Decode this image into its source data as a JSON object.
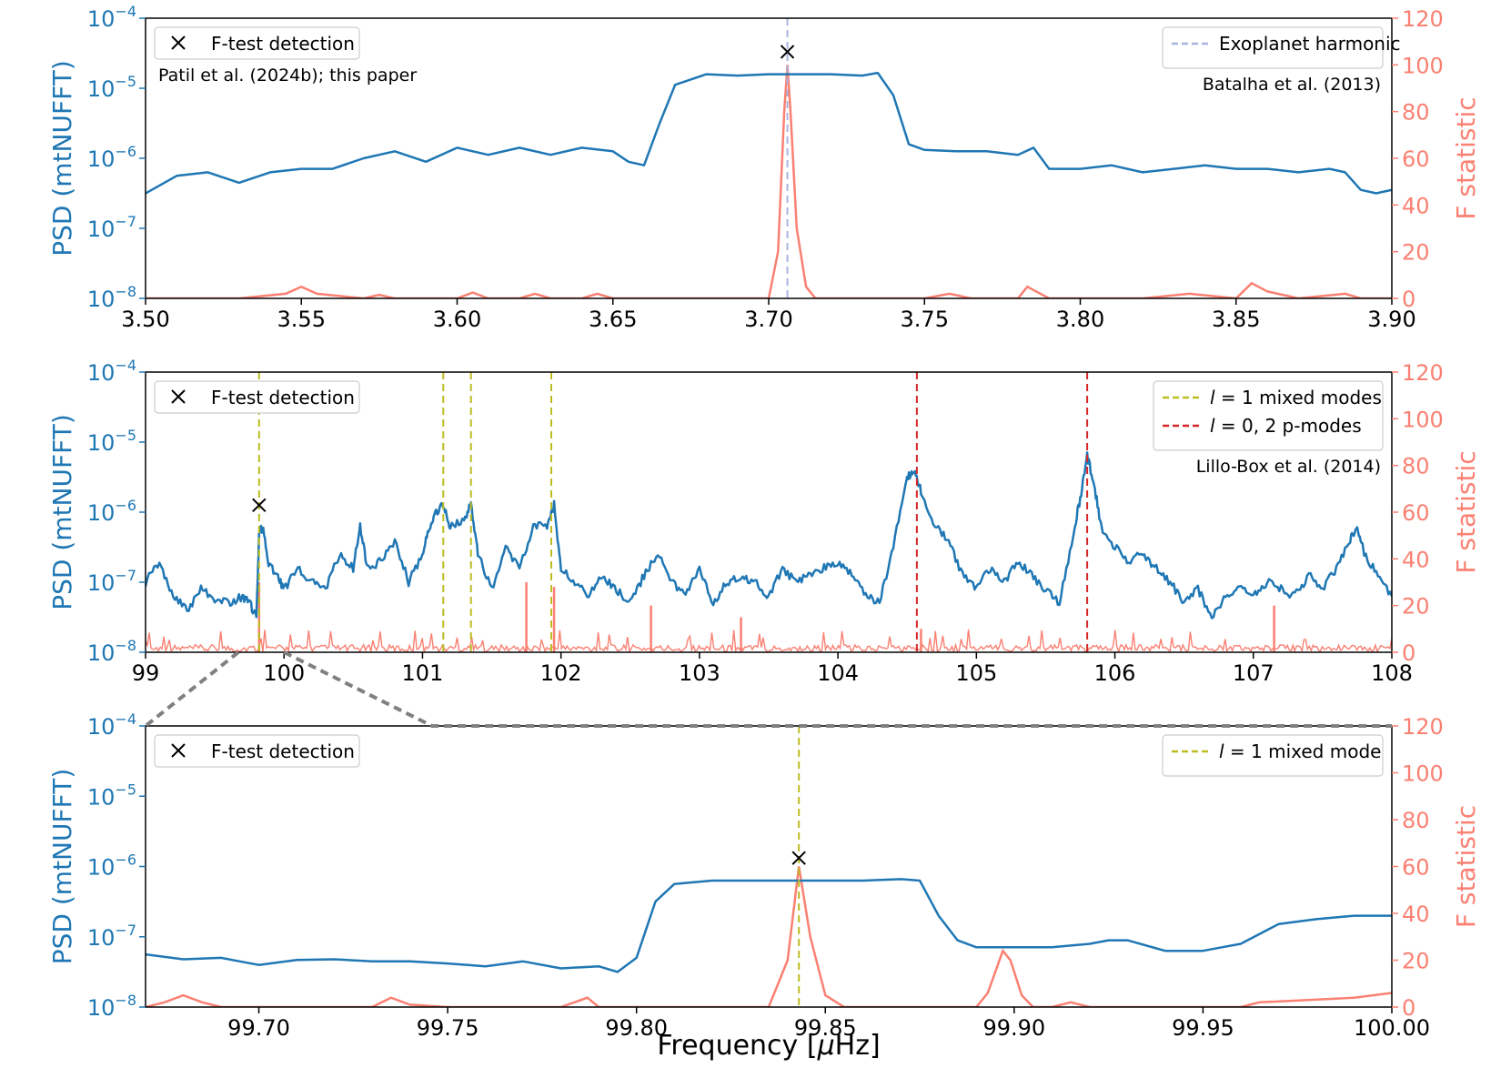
{
  "figure": {
    "xlabel_prefix": "Frequency [",
    "xlabel_mu": "μ",
    "xlabel_suffix": "Hz]",
    "colors": {
      "psd": "#1f77b4",
      "fstat": "#fa8072",
      "harmonic": "#aab4e0",
      "l1": "#bcbd22",
      "p": "#d62728",
      "zoom": "#808080"
    }
  },
  "chart_data": [
    {
      "type": "line",
      "name": "top",
      "xlim": [
        3.5,
        3.9
      ],
      "xticks": [
        "3.50",
        "3.55",
        "3.60",
        "3.65",
        "3.70",
        "3.75",
        "3.80",
        "3.85",
        "3.90"
      ],
      "ylabel_left": "PSD (mtNUFFT)",
      "ylabel_right": "F statistic",
      "yticks_left": [
        "10^-8",
        "10^-7",
        "10^-6",
        "10^-5",
        "10^-4"
      ],
      "yticks_right": [
        "0",
        "20",
        "40",
        "60",
        "80",
        "100",
        "120"
      ],
      "psd_x": [
        3.5,
        3.51,
        3.52,
        3.53,
        3.54,
        3.55,
        3.56,
        3.57,
        3.58,
        3.59,
        3.6,
        3.61,
        3.62,
        3.63,
        3.64,
        3.65,
        3.655,
        3.66,
        3.665,
        3.67,
        3.68,
        3.69,
        3.7,
        3.71,
        3.72,
        3.73,
        3.735,
        3.74,
        3.745,
        3.75,
        3.76,
        3.77,
        3.78,
        3.785,
        3.79,
        3.8,
        3.81,
        3.82,
        3.83,
        3.84,
        3.85,
        3.86,
        3.87,
        3.88,
        3.885,
        3.89,
        3.895,
        3.9
      ],
      "psd_log": [
        -6.5,
        -6.25,
        -6.2,
        -6.35,
        -6.2,
        -6.15,
        -6.15,
        -6.0,
        -5.9,
        -6.05,
        -5.85,
        -5.95,
        -5.85,
        -5.95,
        -5.85,
        -5.9,
        -6.05,
        -6.1,
        -5.5,
        -4.95,
        -4.8,
        -4.82,
        -4.8,
        -4.8,
        -4.8,
        -4.82,
        -4.78,
        -5.1,
        -5.8,
        -5.88,
        -5.9,
        -5.9,
        -5.95,
        -5.85,
        -6.15,
        -6.15,
        -6.1,
        -6.2,
        -6.15,
        -6.1,
        -6.15,
        -6.15,
        -6.2,
        -6.15,
        -6.2,
        -6.45,
        -6.5,
        -6.45
      ],
      "fstat_x": [
        3.5,
        3.53,
        3.545,
        3.55,
        3.555,
        3.57,
        3.575,
        3.58,
        3.6,
        3.605,
        3.61,
        3.62,
        3.625,
        3.63,
        3.64,
        3.645,
        3.65,
        3.7,
        3.703,
        3.705,
        3.706,
        3.707,
        3.709,
        3.712,
        3.715,
        3.75,
        3.758,
        3.765,
        3.78,
        3.783,
        3.79,
        3.82,
        3.835,
        3.85,
        3.855,
        3.86,
        3.87,
        3.885,
        3.89,
        3.9
      ],
      "fstat_y": [
        0,
        0,
        2,
        5,
        2,
        0,
        1.5,
        0,
        0,
        2.5,
        0,
        0,
        2,
        0,
        0,
        2,
        0,
        0,
        20,
        80,
        100,
        80,
        30,
        5,
        0,
        0,
        2,
        0,
        0,
        5,
        0,
        0,
        2,
        0,
        6.5,
        3,
        0,
        2,
        0,
        0
      ],
      "markers": [
        {
          "x": 3.706,
          "log": -4.48
        }
      ],
      "vlines": [
        {
          "x": 3.706,
          "style": "harmonic"
        }
      ],
      "legend_left": {
        "marker_label": "F-test detection",
        "citation": "Patil et al. (2024b); this paper"
      },
      "legend_right": {
        "items": [
          "Exoplanet harmonic"
        ],
        "citation": "Batalha et al. (2013)"
      }
    },
    {
      "type": "line",
      "name": "middle",
      "xlim": [
        99,
        108
      ],
      "xticks": [
        "99",
        "100",
        "101",
        "102",
        "103",
        "104",
        "105",
        "106",
        "107",
        "108"
      ],
      "ylabel_left": "PSD (mtNUFFT)",
      "ylabel_right": "F statistic",
      "yticks_left": [
        "10^-8",
        "10^-7",
        "10^-6",
        "10^-5",
        "10^-4"
      ],
      "yticks_right": [
        "0",
        "20",
        "40",
        "60",
        "80",
        "100",
        "120"
      ],
      "psd_x": [
        99.0,
        99.1,
        99.2,
        99.3,
        99.4,
        99.5,
        99.6,
        99.7,
        99.75,
        99.8,
        99.82,
        99.85,
        99.88,
        99.95,
        100.0,
        100.1,
        100.2,
        100.3,
        100.4,
        100.5,
        100.55,
        100.6,
        100.7,
        100.8,
        100.9,
        101.0,
        101.05,
        101.1,
        101.15,
        101.2,
        101.3,
        101.35,
        101.4,
        101.5,
        101.6,
        101.7,
        101.8,
        101.9,
        101.95,
        102.0,
        102.1,
        102.2,
        102.3,
        102.4,
        102.5,
        102.6,
        102.7,
        102.8,
        102.9,
        103.0,
        103.1,
        103.2,
        103.3,
        103.4,
        103.5,
        103.6,
        103.7,
        103.8,
        103.9,
        104.0,
        104.1,
        104.2,
        104.3,
        104.4,
        104.5,
        104.55,
        104.6,
        104.7,
        104.8,
        104.9,
        105.0,
        105.1,
        105.2,
        105.3,
        105.4,
        105.5,
        105.6,
        105.7,
        105.75,
        105.8,
        105.85,
        105.9,
        106.0,
        106.1,
        106.2,
        106.3,
        106.4,
        106.5,
        106.6,
        106.7,
        106.8,
        106.9,
        107.0,
        107.1,
        107.2,
        107.3,
        107.4,
        107.5,
        107.6,
        107.7,
        107.75,
        107.8,
        107.9,
        108.0
      ],
      "psd_log": [
        -7.0,
        -6.7,
        -7.2,
        -7.4,
        -7.1,
        -7.25,
        -7.3,
        -7.2,
        -7.3,
        -7.5,
        -6.3,
        -6.2,
        -6.7,
        -6.9,
        -7.1,
        -6.8,
        -7.0,
        -7.1,
        -6.6,
        -6.8,
        -6.2,
        -6.8,
        -6.7,
        -6.4,
        -7.0,
        -6.6,
        -6.2,
        -6.0,
        -5.9,
        -6.2,
        -6.1,
        -5.9,
        -6.6,
        -7.1,
        -6.5,
        -6.8,
        -6.2,
        -6.2,
        -5.9,
        -6.8,
        -7.0,
        -7.2,
        -6.9,
        -7.1,
        -7.3,
        -6.9,
        -6.6,
        -7.0,
        -7.2,
        -6.8,
        -7.3,
        -7.0,
        -6.9,
        -7.0,
        -7.2,
        -6.8,
        -7.0,
        -6.9,
        -6.8,
        -6.7,
        -6.9,
        -7.2,
        -7.3,
        -6.5,
        -5.5,
        -5.4,
        -5.7,
        -6.2,
        -6.4,
        -6.9,
        -7.1,
        -6.8,
        -7.0,
        -6.7,
        -6.9,
        -7.1,
        -7.3,
        -6.3,
        -5.8,
        -5.2,
        -5.6,
        -6.2,
        -6.5,
        -6.7,
        -6.6,
        -6.8,
        -7.0,
        -7.3,
        -7.1,
        -7.5,
        -7.2,
        -7.1,
        -7.2,
        -7.0,
        -7.1,
        -7.2,
        -6.9,
        -7.1,
        -6.8,
        -6.4,
        -6.2,
        -6.6,
        -6.9,
        -7.2
      ],
      "fstat_spikes": [
        {
          "x": 99.82,
          "y": 30
        },
        {
          "x": 101.75,
          "y": 30
        },
        {
          "x": 101.95,
          "y": 28
        },
        {
          "x": 102.65,
          "y": 20
        },
        {
          "x": 103.3,
          "y": 15
        },
        {
          "x": 107.15,
          "y": 20
        },
        {
          "x": 104.6,
          "y": 10
        }
      ],
      "markers": [
        {
          "x": 99.82,
          "log": -5.9
        }
      ],
      "vlines": [
        {
          "x": 99.82,
          "style": "l1"
        },
        {
          "x": 101.15,
          "style": "l1"
        },
        {
          "x": 101.35,
          "style": "l1"
        },
        {
          "x": 101.93,
          "style": "l1"
        },
        {
          "x": 104.57,
          "style": "p"
        },
        {
          "x": 105.8,
          "style": "p"
        }
      ],
      "legend_left": {
        "marker_label": "F-test detection"
      },
      "legend_right": {
        "items": [
          "l = 1 mixed modes",
          "l = 0, 2 p-modes"
        ],
        "citation": "Lillo-Box et al. (2014)"
      }
    },
    {
      "type": "line",
      "name": "bottom",
      "xlim": [
        99.67,
        100.0
      ],
      "xticks": [
        "99.70",
        "99.75",
        "99.80",
        "99.85",
        "99.90",
        "99.95",
        "100.00"
      ],
      "ylabel_left": "PSD (mtNUFFT)",
      "ylabel_right": "F statistic",
      "yticks_left": [
        "10^-8",
        "10^-7",
        "10^-6",
        "10^-5",
        "10^-4"
      ],
      "yticks_right": [
        "0",
        "20",
        "40",
        "60",
        "80",
        "100",
        "120"
      ],
      "psd_x": [
        99.67,
        99.68,
        99.69,
        99.7,
        99.71,
        99.72,
        99.73,
        99.74,
        99.75,
        99.76,
        99.77,
        99.78,
        99.79,
        99.795,
        99.8,
        99.805,
        99.81,
        99.82,
        99.84,
        99.86,
        99.87,
        99.875,
        99.88,
        99.885,
        99.89,
        99.9,
        99.91,
        99.92,
        99.925,
        99.93,
        99.94,
        99.95,
        99.955,
        99.96,
        99.97,
        99.98,
        99.99,
        100.0
      ],
      "psd_log": [
        -7.25,
        -7.32,
        -7.3,
        -7.4,
        -7.33,
        -7.32,
        -7.35,
        -7.35,
        -7.38,
        -7.42,
        -7.35,
        -7.45,
        -7.42,
        -7.5,
        -7.3,
        -6.5,
        -6.25,
        -6.2,
        -6.2,
        -6.2,
        -6.18,
        -6.2,
        -6.7,
        -7.05,
        -7.15,
        -7.15,
        -7.15,
        -7.1,
        -7.05,
        -7.05,
        -7.2,
        -7.2,
        -7.15,
        -7.1,
        -6.82,
        -6.75,
        -6.7,
        -6.7
      ],
      "fstat_x": [
        99.67,
        99.675,
        99.68,
        99.685,
        99.69,
        99.73,
        99.735,
        99.74,
        99.75,
        99.78,
        99.787,
        99.79,
        99.835,
        99.84,
        99.843,
        99.846,
        99.85,
        99.855,
        99.89,
        99.893,
        99.895,
        99.897,
        99.899,
        99.902,
        99.905,
        99.91,
        99.915,
        99.92,
        99.96,
        99.965,
        99.99,
        100.0
      ],
      "fstat_y": [
        0,
        2,
        5,
        2,
        0,
        0,
        4,
        1,
        0,
        0,
        4,
        0,
        0,
        20,
        60,
        30,
        5,
        0,
        0,
        6,
        15,
        24,
        20,
        5,
        0,
        0,
        2,
        0,
        0,
        2,
        4,
        6
      ],
      "markers": [
        {
          "x": 99.843,
          "log": -5.88
        }
      ],
      "vlines": [
        {
          "x": 99.843,
          "style": "l1"
        }
      ],
      "legend_left": {
        "marker_label": "F-test detection"
      },
      "legend_right": {
        "items": [
          "l = 1 mixed mode"
        ]
      }
    }
  ]
}
